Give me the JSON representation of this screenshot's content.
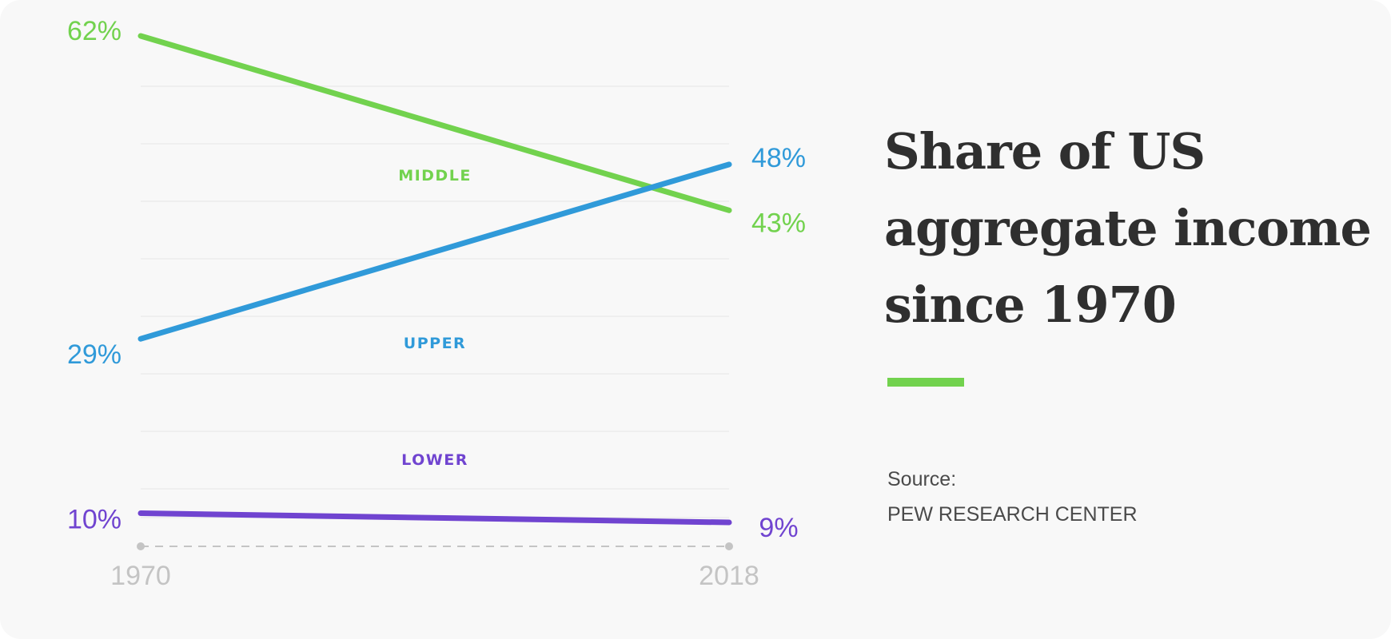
{
  "colors": {
    "background": "#f8f8f8",
    "middle": "#72d24e",
    "upper": "#309ad9",
    "lower": "#7044d0",
    "title": "#2f2f2f",
    "axis": "#c4c4c4",
    "grid": "#ececec"
  },
  "title": {
    "lines": [
      "Share of US",
      "aggregate income",
      "since 1970"
    ]
  },
  "source": {
    "label": "Source:",
    "name": "PEW RESEARCH CENTER"
  },
  "chart_data": {
    "type": "line",
    "title": "Share of US aggregate income since 1970",
    "x": [
      1970,
      2018
    ],
    "x_tick_labels": [
      "1970",
      "2018"
    ],
    "xlabel": "",
    "ylabel": "",
    "ylim": [
      5,
      64
    ],
    "grid": true,
    "legend": "inline labels",
    "series": [
      {
        "name": "MIDDLE",
        "key": "middle",
        "values": [
          62,
          43
        ],
        "labels": [
          "62%",
          "43%"
        ]
      },
      {
        "name": "UPPER",
        "key": "upper",
        "values": [
          29,
          48
        ],
        "labels": [
          "29%",
          "48%"
        ]
      },
      {
        "name": "LOWER",
        "key": "lower",
        "values": [
          10,
          9
        ],
        "labels": [
          "10%",
          "9%"
        ]
      }
    ]
  }
}
